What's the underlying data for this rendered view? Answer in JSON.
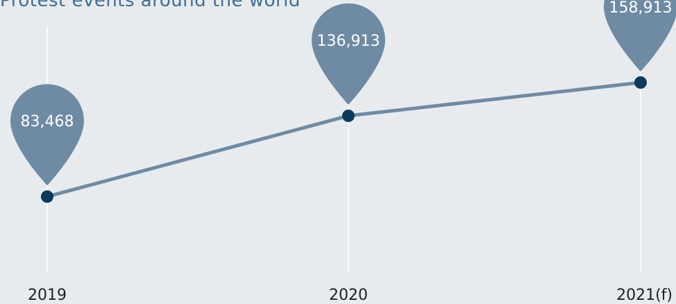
{
  "title": "Protest events around the world",
  "colors": {
    "background": "#e8ebee",
    "title": "#3b6e9a",
    "line": "#6e8ba3",
    "point": "#0b3a5c",
    "pin": "#6e8ba3",
    "gridline": "#ffffff",
    "tick_text": "#1f1f1f",
    "pin_text": "#ffffff"
  },
  "chart_data": {
    "type": "line",
    "title": "Protest events around the world",
    "xlabel": "",
    "ylabel": "",
    "categories": [
      "2019",
      "2020",
      "2021(f)"
    ],
    "series": [
      {
        "values": [
          83468,
          136913,
          158913
        ],
        "labels": [
          "83,468",
          "136,913",
          "158,913"
        ]
      }
    ],
    "ylim": [
      45000,
      180000
    ],
    "grid": "vertical",
    "legend": "none"
  }
}
